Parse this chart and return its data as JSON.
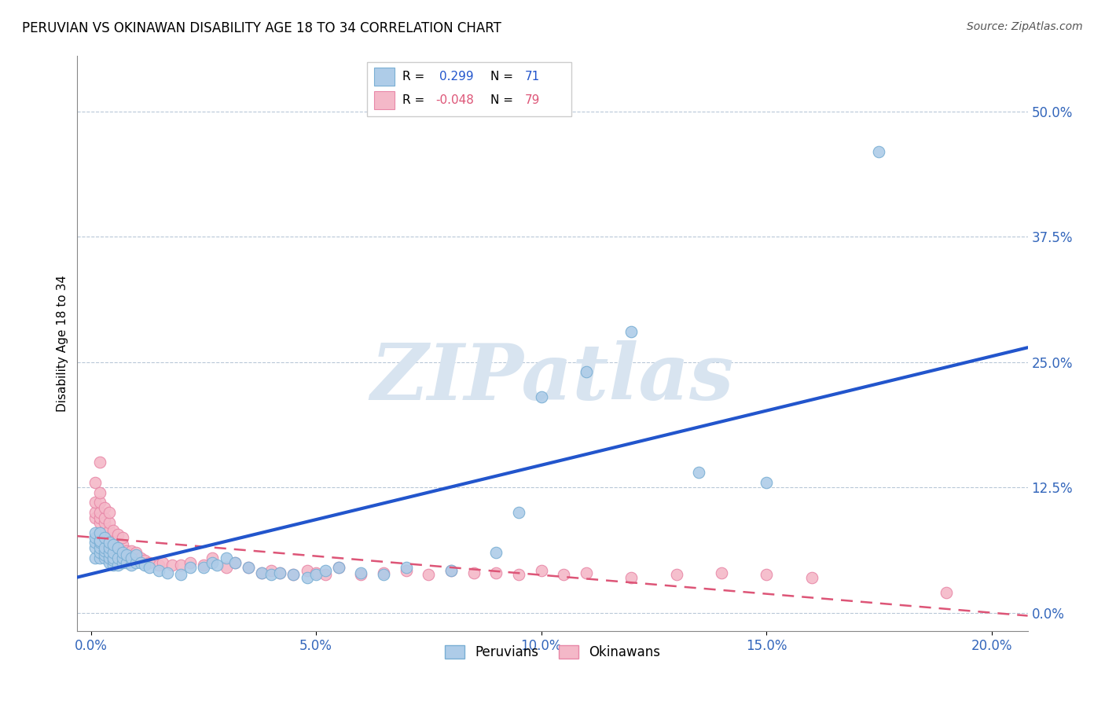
{
  "title": "PERUVIAN VS OKINAWAN DISABILITY AGE 18 TO 34 CORRELATION CHART",
  "source": "Source: ZipAtlas.com",
  "xlabel_ticks": [
    "0.0%",
    "5.0%",
    "10.0%",
    "15.0%",
    "20.0%"
  ],
  "xlabel_tick_vals": [
    0.0,
    0.05,
    0.1,
    0.15,
    0.2
  ],
  "ylabel": "Disability Age 18 to 34",
  "ylabel_ticks": [
    "0.0%",
    "12.5%",
    "25.0%",
    "37.5%",
    "50.0%"
  ],
  "ylabel_tick_vals": [
    0.0,
    0.125,
    0.25,
    0.375,
    0.5
  ],
  "xlim": [
    -0.003,
    0.208
  ],
  "ylim": [
    -0.018,
    0.555
  ],
  "peruvian_R": 0.299,
  "peruvian_N": 71,
  "okinawan_R": -0.048,
  "okinawan_N": 79,
  "peruvian_color": "#aecce8",
  "peruvian_edge": "#7aafd4",
  "okinawan_color": "#f4b8c8",
  "okinawan_edge": "#e888a8",
  "peruvian_line_color": "#2255cc",
  "okinawan_line_color": "#dd5577",
  "watermark_text": "ZIPatlas",
  "watermark_color": "#d8e4f0",
  "peruvians_x": [
    0.001,
    0.001,
    0.001,
    0.001,
    0.001,
    0.002,
    0.002,
    0.002,
    0.002,
    0.002,
    0.002,
    0.003,
    0.003,
    0.003,
    0.003,
    0.003,
    0.004,
    0.004,
    0.004,
    0.004,
    0.004,
    0.005,
    0.005,
    0.005,
    0.005,
    0.005,
    0.006,
    0.006,
    0.006,
    0.007,
    0.007,
    0.007,
    0.008,
    0.008,
    0.009,
    0.009,
    0.01,
    0.01,
    0.011,
    0.012,
    0.013,
    0.015,
    0.017,
    0.02,
    0.022,
    0.025,
    0.027,
    0.028,
    0.03,
    0.032,
    0.035,
    0.038,
    0.04,
    0.042,
    0.045,
    0.048,
    0.05,
    0.052,
    0.055,
    0.06,
    0.065,
    0.07,
    0.08,
    0.09,
    0.095,
    0.1,
    0.11,
    0.12,
    0.135,
    0.15,
    0.175
  ],
  "peruvians_y": [
    0.055,
    0.065,
    0.07,
    0.075,
    0.08,
    0.055,
    0.06,
    0.065,
    0.07,
    0.072,
    0.08,
    0.055,
    0.058,
    0.062,
    0.065,
    0.075,
    0.05,
    0.055,
    0.06,
    0.065,
    0.07,
    0.048,
    0.052,
    0.055,
    0.06,
    0.068,
    0.048,
    0.055,
    0.065,
    0.05,
    0.055,
    0.06,
    0.05,
    0.058,
    0.048,
    0.055,
    0.05,
    0.058,
    0.05,
    0.048,
    0.045,
    0.042,
    0.04,
    0.038,
    0.045,
    0.045,
    0.05,
    0.048,
    0.055,
    0.05,
    0.045,
    0.04,
    0.038,
    0.04,
    0.038,
    0.035,
    0.038,
    0.042,
    0.045,
    0.04,
    0.038,
    0.045,
    0.042,
    0.06,
    0.1,
    0.215,
    0.24,
    0.28,
    0.14,
    0.13,
    0.46
  ],
  "okinawans_x": [
    0.001,
    0.001,
    0.001,
    0.001,
    0.002,
    0.002,
    0.002,
    0.002,
    0.002,
    0.002,
    0.002,
    0.003,
    0.003,
    0.003,
    0.003,
    0.003,
    0.003,
    0.004,
    0.004,
    0.004,
    0.004,
    0.004,
    0.004,
    0.005,
    0.005,
    0.005,
    0.005,
    0.006,
    0.006,
    0.006,
    0.006,
    0.007,
    0.007,
    0.007,
    0.007,
    0.008,
    0.008,
    0.009,
    0.009,
    0.01,
    0.01,
    0.011,
    0.012,
    0.013,
    0.015,
    0.016,
    0.018,
    0.02,
    0.022,
    0.025,
    0.027,
    0.03,
    0.032,
    0.035,
    0.038,
    0.04,
    0.042,
    0.045,
    0.048,
    0.05,
    0.052,
    0.055,
    0.06,
    0.065,
    0.07,
    0.075,
    0.08,
    0.085,
    0.09,
    0.095,
    0.1,
    0.105,
    0.11,
    0.12,
    0.13,
    0.14,
    0.15,
    0.16,
    0.19
  ],
  "okinawans_y": [
    0.095,
    0.1,
    0.11,
    0.13,
    0.08,
    0.09,
    0.095,
    0.1,
    0.11,
    0.12,
    0.15,
    0.07,
    0.075,
    0.082,
    0.09,
    0.095,
    0.105,
    0.065,
    0.07,
    0.075,
    0.082,
    0.09,
    0.1,
    0.06,
    0.068,
    0.075,
    0.082,
    0.058,
    0.065,
    0.07,
    0.078,
    0.055,
    0.06,
    0.068,
    0.075,
    0.055,
    0.062,
    0.055,
    0.062,
    0.055,
    0.06,
    0.055,
    0.052,
    0.05,
    0.048,
    0.05,
    0.048,
    0.048,
    0.05,
    0.048,
    0.055,
    0.045,
    0.05,
    0.045,
    0.04,
    0.042,
    0.04,
    0.038,
    0.042,
    0.04,
    0.038,
    0.045,
    0.038,
    0.04,
    0.042,
    0.038,
    0.042,
    0.04,
    0.04,
    0.038,
    0.042,
    0.038,
    0.04,
    0.035,
    0.038,
    0.04,
    0.038,
    0.035,
    0.02
  ]
}
